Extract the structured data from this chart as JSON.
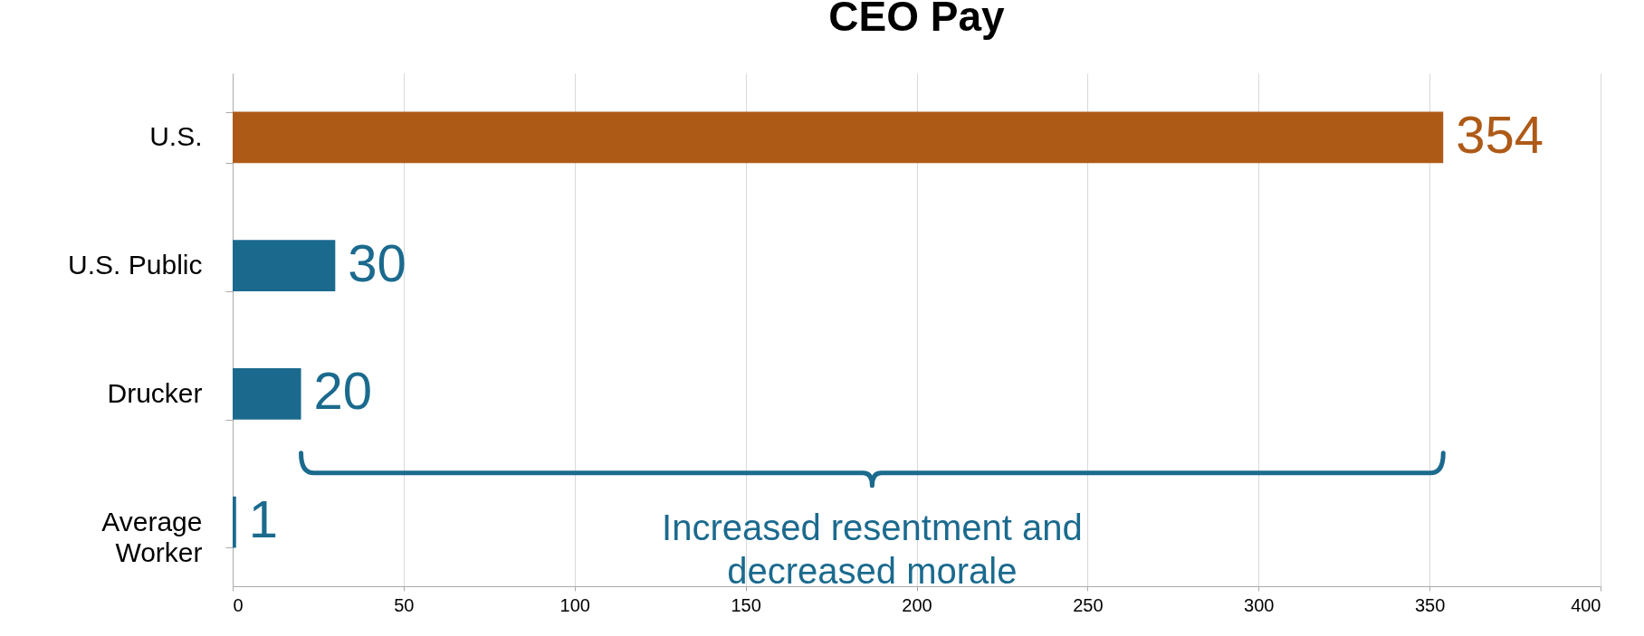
{
  "chart_data": {
    "type": "bar",
    "orientation": "horizontal",
    "title": "CEO Pay",
    "categories": [
      "U.S.",
      "U.S. Public",
      "Drucker",
      "Average Worker"
    ],
    "values": [
      354,
      30,
      20,
      1
    ],
    "colors": [
      "#ae5a17",
      "#1b6a8e",
      "#1b6a8e",
      "#1b6a8e"
    ],
    "xlim": [
      0,
      400
    ],
    "xticks": [
      0,
      50,
      100,
      150,
      200,
      250,
      300,
      350,
      400
    ],
    "grid": "x",
    "data_labels": true,
    "annotations": [
      "Increased resentment and decreased morale"
    ]
  }
}
